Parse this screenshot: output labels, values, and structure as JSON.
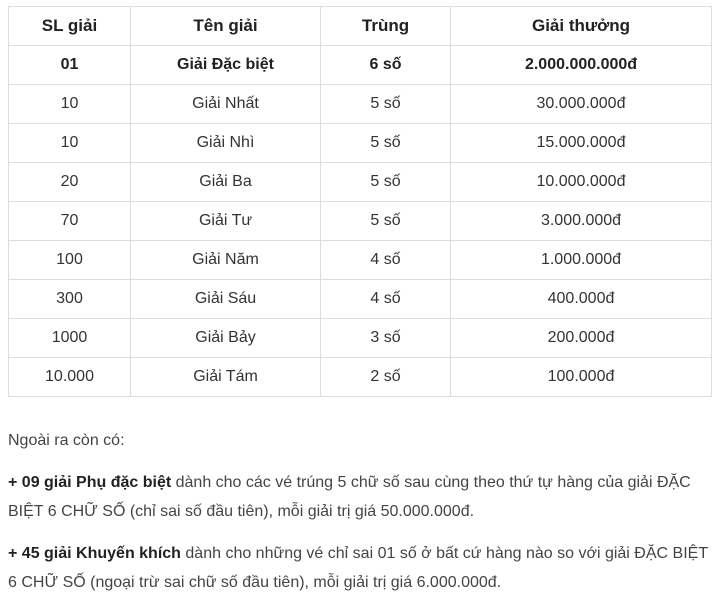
{
  "table": {
    "headers": [
      "SL giải",
      "Tên giải",
      "Trùng",
      "Giải thưởng"
    ],
    "rows": [
      [
        "01",
        "Giải Đặc biệt",
        "6 số",
        "2.000.000.000đ"
      ],
      [
        "10",
        "Giải Nhất",
        "5 số",
        "30.000.000đ"
      ],
      [
        "10",
        "Giải Nhì",
        "5 số",
        "15.000.000đ"
      ],
      [
        "20",
        "Giải Ba",
        "5 số",
        "10.000.000đ"
      ],
      [
        "70",
        "Giải Tư",
        "5 số",
        "3.000.000đ"
      ],
      [
        "100",
        "Giải Năm",
        "4 số",
        "1.000.000đ"
      ],
      [
        "300",
        "Giải Sáu",
        "4 số",
        "400.000đ"
      ],
      [
        "1000",
        "Giải Bảy",
        "3 số",
        "200.000đ"
      ],
      [
        "10.000",
        "Giải Tám",
        "2 số",
        "100.000đ"
      ]
    ]
  },
  "text": {
    "intro": "Ngoài ra còn có:",
    "p1_bold": "+ 09 giải Phụ đặc biệt",
    "p1_rest": " dành cho các vé trúng 5 chữ số sau cùng theo thứ tự hàng của giải ĐẶC BIỆT 6 CHỮ SỐ (chỉ sai số đầu tiên), mỗi giải trị giá 50.000.000đ.",
    "p2_bold": "+ 45 giải Khuyến khích",
    "p2_rest": " dành cho những vé chỉ sai 01 số ở bất cứ hàng nào so với giải ĐẶC BIỆT 6 CHỮ SỐ (ngoại trừ sai chữ số đầu tiên), mỗi giải trị giá 6.000.000đ."
  }
}
